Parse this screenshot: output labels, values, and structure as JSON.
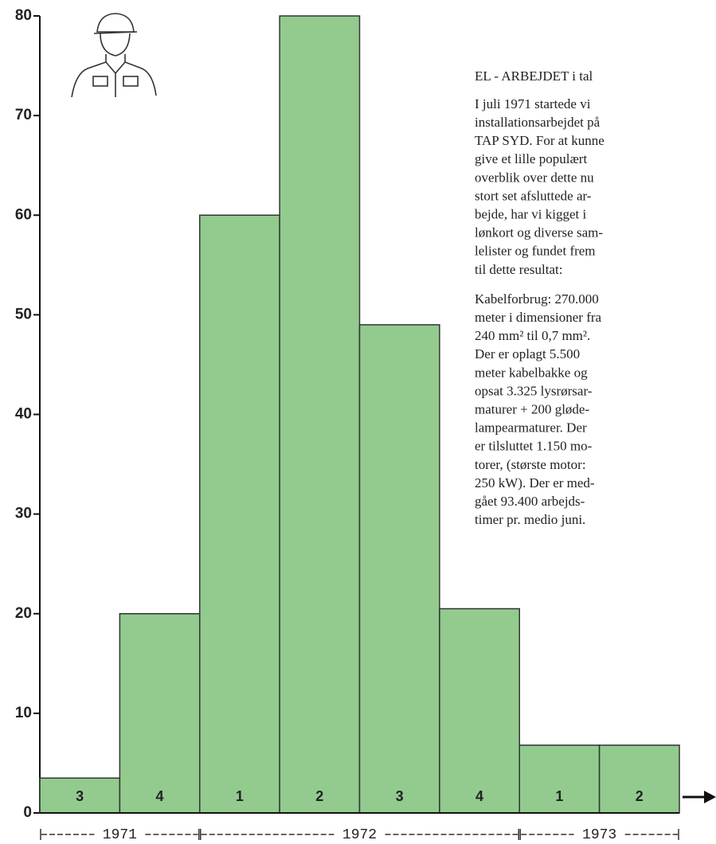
{
  "chart_data": {
    "type": "bar",
    "categories": [
      "3",
      "4",
      "1",
      "2",
      "3",
      "4",
      "1",
      "2"
    ],
    "values": [
      3.5,
      20,
      60,
      80,
      49,
      20.5,
      6.8,
      6.8
    ],
    "color": "#93cb8f",
    "ylim": [
      0,
      80
    ],
    "yticks": [
      0,
      10,
      20,
      30,
      40,
      50,
      60,
      70,
      80
    ],
    "year_labels": [
      "1971",
      "1972",
      "1973"
    ],
    "annotation": {
      "title": "EL - ARBEJDET i tal",
      "paragraphs": [
        [
          "I juli 1971 startede vi",
          "installationsarbejdet på",
          "TAP SYD. For at kunne",
          "give et lille populært",
          "overblik over dette nu",
          "stort set afsluttede ar-",
          "bejde, har vi kigget i",
          "lønkort og diverse sam-",
          "lelister og fundet frem",
          "til dette resultat:"
        ],
        [
          "Kabelforbrug: 270.000",
          "meter i dimensioner fra",
          "240 mm² til 0,7 mm².",
          "Der er oplagt 5.500",
          "meter kabelbakke og",
          "opsat 3.325 lysrørsar-",
          "maturer + 200 gløde-",
          "lampearmaturer. Der",
          "er tilsluttet 1.150 mo-",
          "torer, (største motor:",
          "250 kW). Der er med-",
          "gået 93.400 arbejds-",
          "timer pr. medio juni."
        ]
      ]
    }
  }
}
